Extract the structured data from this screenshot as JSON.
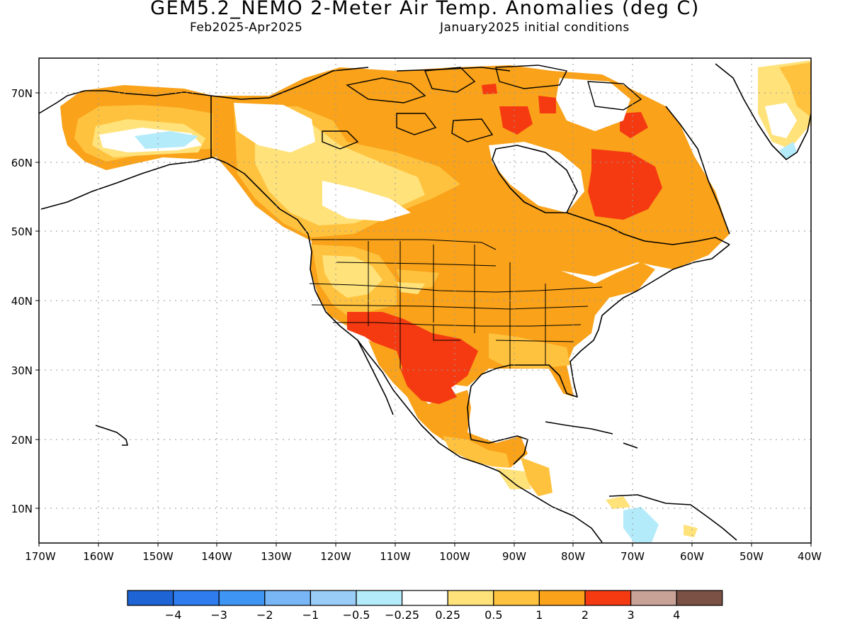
{
  "header": {
    "title": "GEM5.2_NEMO 2-Meter Air Temp. Anomalies (deg C)",
    "period": "Feb2025-Apr2025",
    "initial_conditions": "January2025 initial conditions"
  },
  "map": {
    "lat_labels": [
      "70N",
      "60N",
      "50N",
      "40N",
      "30N",
      "20N",
      "10N"
    ],
    "lon_labels": [
      "170W",
      "160W",
      "150W",
      "140W",
      "130W",
      "120W",
      "110W",
      "100W",
      "90W",
      "80W",
      "70W",
      "60W",
      "50W",
      "40W"
    ]
  },
  "colorbar": {
    "colors": [
      "#1e64d4",
      "#2e7ced",
      "#3f95f4",
      "#78b6f6",
      "#99cdf8",
      "#b4ebfa",
      "#ffffff",
      "#ffe27a",
      "#ffc23e",
      "#f9a21a",
      "#f53a12",
      "#c8a197",
      "#7b5145"
    ],
    "labels": [
      "-4",
      "-3",
      "-2",
      "-1",
      "-0.5",
      "-0.25",
      "0.25",
      "0.5",
      "1",
      "2",
      "3",
      "4"
    ]
  }
}
